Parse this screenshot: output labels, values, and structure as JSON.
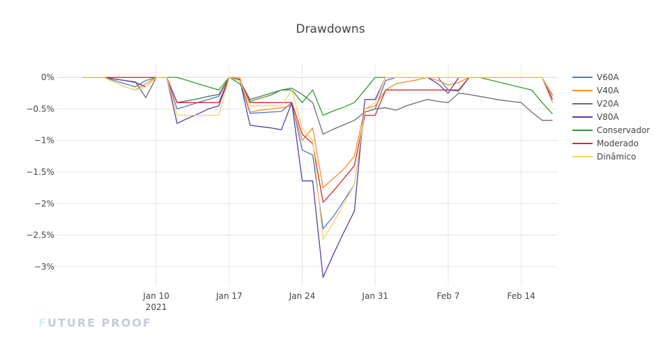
{
  "chart_data": {
    "type": "line",
    "title": "Drawdowns",
    "xlabel": "",
    "ylabel": "",
    "x_range_days": [
      -2.5,
      45.5
    ],
    "ylim": [
      -3.3,
      0.2
    ],
    "yticks": [
      {
        "value": 0,
        "label": "0%"
      },
      {
        "value": -0.5,
        "label": "−0.5%"
      },
      {
        "value": -1,
        "label": "−1%"
      },
      {
        "value": -1.5,
        "label": "−1.5%"
      },
      {
        "value": -2,
        "label": "−2%"
      },
      {
        "value": -2.5,
        "label": "−2.5%"
      },
      {
        "value": -3,
        "label": "−3%"
      }
    ],
    "xticks": [
      {
        "day": 7,
        "label": "Jan 10",
        "sublabel": "2021"
      },
      {
        "day": 14,
        "label": "Jan 17",
        "sublabel": ""
      },
      {
        "day": 21,
        "label": "Jan 24",
        "sublabel": ""
      },
      {
        "day": 28,
        "label": "Jan 31",
        "sublabel": ""
      },
      {
        "day": 35,
        "label": "Feb 7",
        "sublabel": ""
      },
      {
        "day": 42,
        "label": "Feb 14",
        "sublabel": ""
      }
    ],
    "x": [
      0,
      2,
      4,
      5,
      6,
      7,
      8,
      9,
      10,
      11,
      12,
      13,
      14,
      15,
      16,
      17,
      18,
      19,
      20,
      21,
      22,
      23,
      24,
      25,
      26,
      27,
      28,
      29,
      30,
      31,
      32,
      33,
      34,
      35,
      36,
      37,
      38,
      39,
      40,
      41,
      42,
      43,
      44,
      45
    ],
    "series": [
      {
        "name": "V60A",
        "color": "#4c78c8",
        "values": [
          0,
          0,
          -0.1,
          -0.15,
          -0.05,
          0,
          0,
          -0.5,
          -0.45,
          -0.4,
          -0.35,
          -0.3,
          0,
          -0.05,
          -0.57,
          -0.56,
          -0.55,
          -0.54,
          -0.4,
          -1.15,
          -1.23,
          -2.4,
          -2.2,
          -1.95,
          -1.7,
          -0.55,
          -0.5,
          -0.05,
          0,
          0,
          0,
          0,
          0,
          -0.2,
          -0.22,
          0,
          0,
          0,
          0,
          0,
          0,
          0,
          0,
          -0.3
        ]
      },
      {
        "name": "V40A",
        "color": "#f28e2b",
        "values": [
          0,
          0,
          -0.15,
          -0.2,
          -0.1,
          0,
          0,
          -0.4,
          -0.37,
          -0.34,
          -0.3,
          -0.27,
          0,
          0,
          -0.55,
          -0.52,
          -0.5,
          -0.48,
          -0.45,
          -1.0,
          -0.8,
          -1.75,
          -1.6,
          -1.45,
          -1.25,
          -0.5,
          -0.45,
          -0.2,
          -0.1,
          -0.07,
          -0.04,
          0,
          -0.05,
          -0.12,
          -0.08,
          0,
          0,
          0,
          0,
          0,
          0,
          0,
          0,
          -0.4
        ]
      },
      {
        "name": "V20A",
        "color": "#6b6b6b",
        "values": [
          0,
          0,
          -0.05,
          -0.07,
          -0.32,
          0,
          0,
          -0.4,
          -0.37,
          -0.34,
          -0.3,
          -0.27,
          0,
          -0.05,
          -0.35,
          -0.3,
          -0.25,
          -0.2,
          -0.17,
          -0.27,
          -0.4,
          -0.9,
          -0.82,
          -0.75,
          -0.68,
          -0.55,
          -0.5,
          -0.48,
          -0.52,
          -0.45,
          -0.4,
          -0.35,
          -0.38,
          -0.4,
          -0.25,
          -0.27,
          -0.3,
          -0.33,
          -0.36,
          -0.38,
          -0.4,
          -0.55,
          -0.68,
          -0.68
        ]
      },
      {
        "name": "V80A",
        "color": "#5a3ba8",
        "values": [
          0,
          0,
          -0.05,
          -0.08,
          -0.15,
          0,
          0,
          -0.73,
          -0.65,
          -0.58,
          -0.5,
          -0.45,
          0,
          -0.03,
          -0.76,
          -0.78,
          -0.8,
          -0.83,
          -0.4,
          -1.64,
          -1.64,
          -3.17,
          -2.8,
          -2.45,
          -2.12,
          -0.35,
          -0.35,
          0,
          0,
          0,
          0,
          0,
          -0.1,
          -0.25,
          0,
          0,
          0,
          0,
          0,
          0,
          0,
          0,
          0,
          -0.35
        ]
      },
      {
        "name": "Conservador",
        "color": "#2ca02c",
        "values": [
          0,
          0,
          0,
          0,
          0,
          0,
          0,
          0,
          -0.05,
          -0.1,
          -0.15,
          -0.2,
          0,
          -0.1,
          -0.38,
          -0.33,
          -0.28,
          -0.2,
          -0.2,
          -0.4,
          -0.2,
          -0.6,
          -0.53,
          -0.47,
          -0.4,
          -0.2,
          0,
          0,
          0,
          0,
          0,
          0,
          0,
          0,
          0,
          0,
          0,
          -0.04,
          -0.08,
          -0.12,
          -0.16,
          -0.2,
          -0.4,
          -0.58
        ]
      },
      {
        "name": "Moderado",
        "color": "#d62728",
        "values": [
          0,
          0,
          0,
          0,
          0,
          0,
          0,
          -0.4,
          -0.4,
          -0.4,
          -0.4,
          -0.4,
          0,
          -0.05,
          -0.4,
          -0.4,
          -0.4,
          -0.4,
          -0.4,
          -0.9,
          -1.05,
          -1.98,
          -1.8,
          -1.6,
          -1.4,
          -0.6,
          -0.6,
          -0.2,
          -0.2,
          -0.2,
          -0.2,
          -0.2,
          -0.2,
          -0.2,
          -0.2,
          0,
          0,
          0,
          0,
          0,
          0,
          0,
          0,
          -0.28
        ]
      },
      {
        "name": "Dinâmico",
        "color": "#fcd06a",
        "values": [
          0,
          0,
          -0.15,
          -0.2,
          -0.15,
          0,
          0,
          -0.6,
          -0.6,
          -0.6,
          -0.6,
          -0.6,
          0,
          -0.05,
          -0.45,
          -0.45,
          -0.45,
          -0.45,
          -0.2,
          -0.8,
          -1.0,
          -2.57,
          -2.3,
          -2.0,
          -1.7,
          -0.5,
          -0.4,
          0,
          0,
          0,
          0,
          0,
          0,
          0,
          0,
          0,
          0,
          0,
          0,
          0,
          0,
          0,
          0,
          -0.3
        ]
      }
    ]
  },
  "watermark": {
    "first": "F",
    "rest": "UTURE PROOF"
  }
}
